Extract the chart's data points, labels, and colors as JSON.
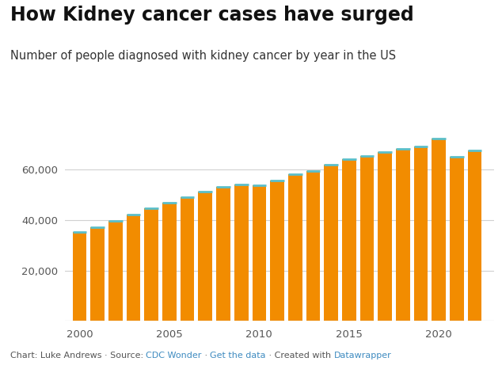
{
  "title": "How Kidney cancer cases have surged",
  "subtitle": "Number of people diagnosed with kidney cancer by year in the US",
  "years": [
    2000,
    2001,
    2002,
    2003,
    2004,
    2005,
    2006,
    2007,
    2008,
    2009,
    2010,
    2011,
    2012,
    2013,
    2014,
    2015,
    2016,
    2017,
    2018,
    2019,
    2020,
    2021,
    2022
  ],
  "values": [
    35300,
    37200,
    39500,
    42300,
    44800,
    47000,
    49200,
    51200,
    53200,
    54200,
    53900,
    55800,
    58200,
    59500,
    62000,
    64200,
    65400,
    67000,
    68100,
    69200,
    72200,
    65000,
    67500
  ],
  "bar_color": "#F28C00",
  "bar_edge_color": "#5BBFC9",
  "background_color": "#FFFFFF",
  "grid_color": "#D0D0D0",
  "ylim": [
    0,
    76000
  ],
  "yticks": [
    20000,
    40000,
    60000
  ],
  "xtick_years": [
    2000,
    2005,
    2010,
    2015,
    2020
  ],
  "title_fontsize": 17,
  "subtitle_fontsize": 10.5,
  "tick_fontsize": 9.5,
  "footer_fontsize": 8,
  "plain_color": "#555555",
  "link_color": "#3E8BC0",
  "footer_prefix": "Chart: Luke Andrews · Source: ",
  "footer_link1": "CDC Wonder",
  "footer_mid1": " · ",
  "footer_link2": "Get the data",
  "footer_mid2": " · Created with ",
  "footer_link3": "Datawrapper"
}
